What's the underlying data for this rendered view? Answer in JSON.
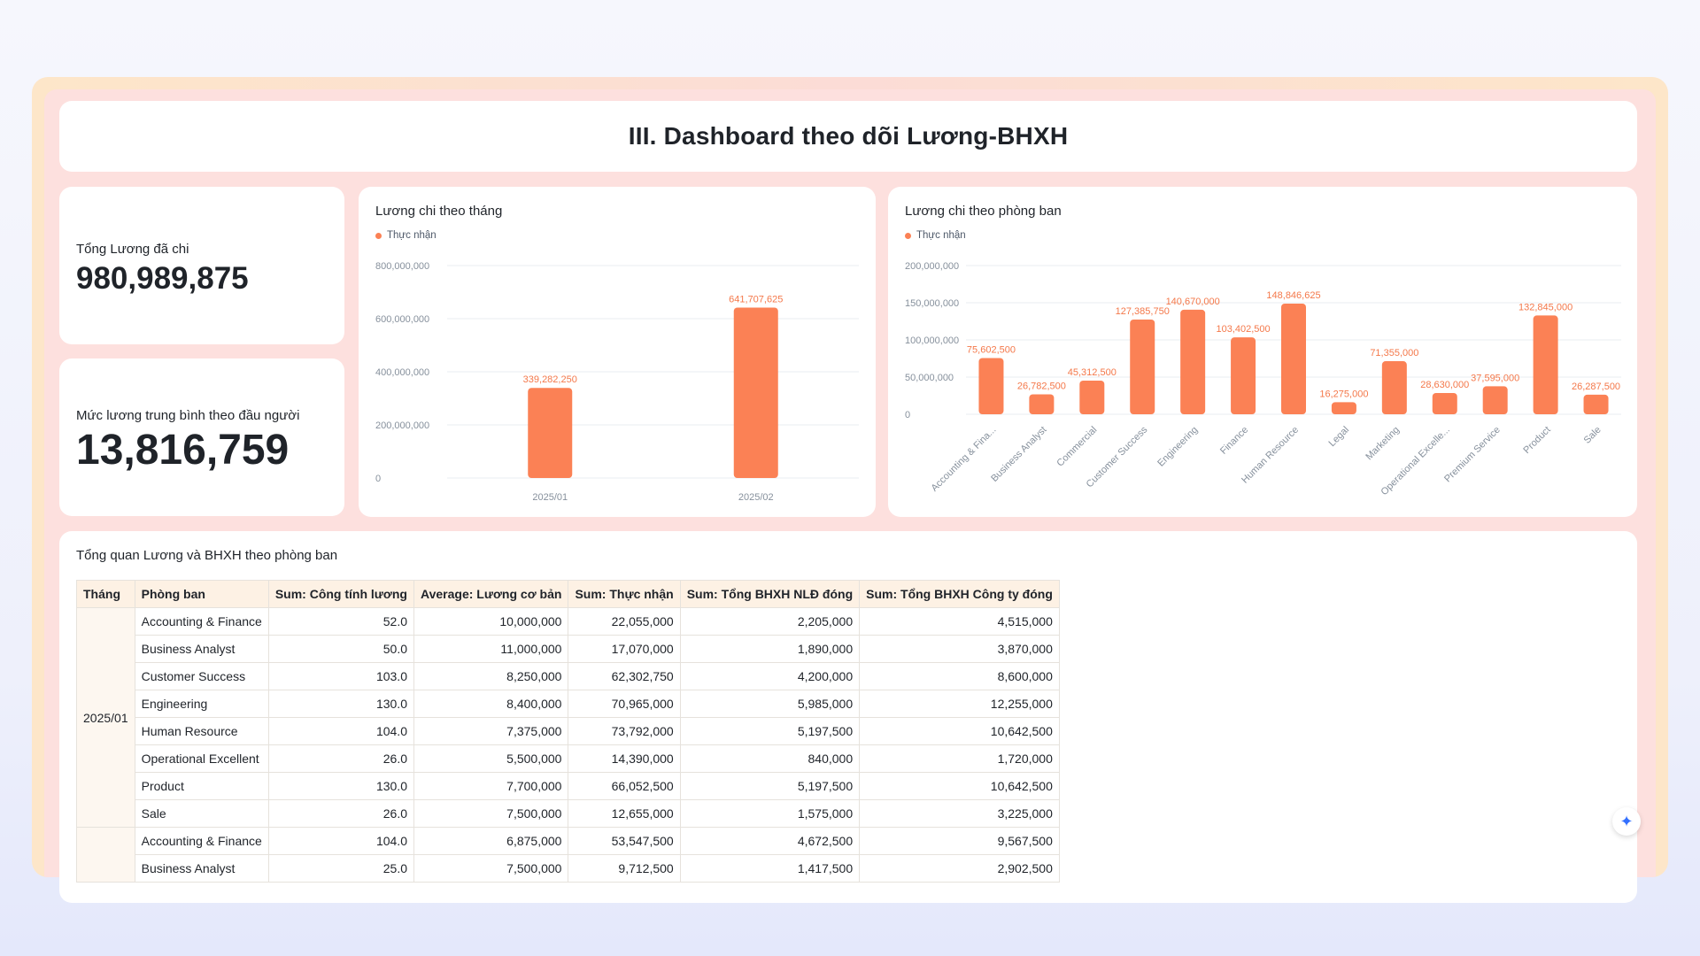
{
  "dashboard": {
    "title": "III. Dashboard theo dõi Lương-BHXH"
  },
  "kpis": {
    "total_label": "Tổng Lương đã chi",
    "total_value": "980,989,875",
    "avg_label": "Mức lương trung bình theo đầu người",
    "avg_value": "13,816,759"
  },
  "chart_data": [
    {
      "type": "bar",
      "title": "Lương chi theo tháng",
      "legend": "Thực nhận",
      "categories": [
        "2025/01",
        "2025/02"
      ],
      "values": [
        339282250,
        641707625
      ],
      "value_labels": [
        "339,282,250",
        "641,707,625"
      ],
      "ylim": [
        0,
        800000000
      ],
      "yticks": [
        "800,000,000",
        "600,000,000",
        "400,000,000",
        "200,000,000",
        "0"
      ],
      "ytick_values": [
        800000000,
        600000000,
        400000000,
        200000000,
        0
      ],
      "color": "#fb8155",
      "legend_position": "top-left",
      "grid": true
    },
    {
      "type": "bar",
      "title": "Lương chi theo phòng ban",
      "legend": "Thực nhận",
      "categories": [
        "Accounting & Fina...",
        "Business Analyst",
        "Commercial",
        "Customer Success",
        "Engineering",
        "Finance",
        "Human Resource",
        "Legal",
        "Marketing",
        "Operational Excelle...",
        "Premium Service",
        "Product",
        "Sale"
      ],
      "values": [
        75602500,
        26782500,
        45312500,
        127385750,
        140670000,
        103402500,
        148846625,
        16275000,
        71355000,
        28630000,
        37595000,
        132845000,
        26287500
      ],
      "value_labels": [
        "75,602,500",
        "26,782,500",
        "45,312,500",
        "127,385,750",
        "140,670,000",
        "103,402,500",
        "148,846,625",
        "16,275,000",
        "71,355,000",
        "28,630,000",
        "37,595,000",
        "132,845,000",
        "26,287,500"
      ],
      "ylim": [
        0,
        200000000
      ],
      "yticks": [
        "200,000,000",
        "150,000,000",
        "100,000,000",
        "50,000,000",
        "0"
      ],
      "ytick_values": [
        200000000,
        150000000,
        100000000,
        50000000,
        0
      ],
      "color": "#fb8155",
      "legend_position": "top-left",
      "grid": true
    }
  ],
  "table": {
    "title": "Tổng quan Lương và BHXH theo phòng ban",
    "headers": [
      "Tháng",
      "Phòng ban",
      "Sum:  Công tính lương",
      "Average:  Lương cơ bản",
      "Sum:  Thực nhận",
      "Sum:  Tổng BHXH NLĐ đóng",
      "Sum:  Tổng BHXH Công ty đóng"
    ],
    "groups": [
      {
        "month": "2025/01",
        "rows": [
          [
            "Accounting & Finance",
            "52.0",
            "10,000,000",
            "22,055,000",
            "2,205,000",
            "4,515,000"
          ],
          [
            "Business Analyst",
            "50.0",
            "11,000,000",
            "17,070,000",
            "1,890,000",
            "3,870,000"
          ],
          [
            "Customer Success",
            "103.0",
            "8,250,000",
            "62,302,750",
            "4,200,000",
            "8,600,000"
          ],
          [
            "Engineering",
            "130.0",
            "8,400,000",
            "70,965,000",
            "5,985,000",
            "12,255,000"
          ],
          [
            "Human Resource",
            "104.0",
            "7,375,000",
            "73,792,000",
            "5,197,500",
            "10,642,500"
          ],
          [
            "Operational Excellent",
            "26.0",
            "5,500,000",
            "14,390,000",
            "840,000",
            "1,720,000"
          ],
          [
            "Product",
            "130.0",
            "7,700,000",
            "66,052,500",
            "5,197,500",
            "10,642,500"
          ],
          [
            "Sale",
            "26.0",
            "7,500,000",
            "12,655,000",
            "1,575,000",
            "3,225,000"
          ]
        ]
      },
      {
        "month": "",
        "rows": [
          [
            "Accounting & Finance",
            "104.0",
            "6,875,000",
            "53,547,500",
            "4,672,500",
            "9,567,500"
          ],
          [
            "Business Analyst",
            "25.0",
            "7,500,000",
            "9,712,500",
            "1,417,500",
            "2,902,500"
          ]
        ]
      }
    ]
  },
  "fab": {
    "icon": "sparkle-icon",
    "glyph": "✦"
  }
}
